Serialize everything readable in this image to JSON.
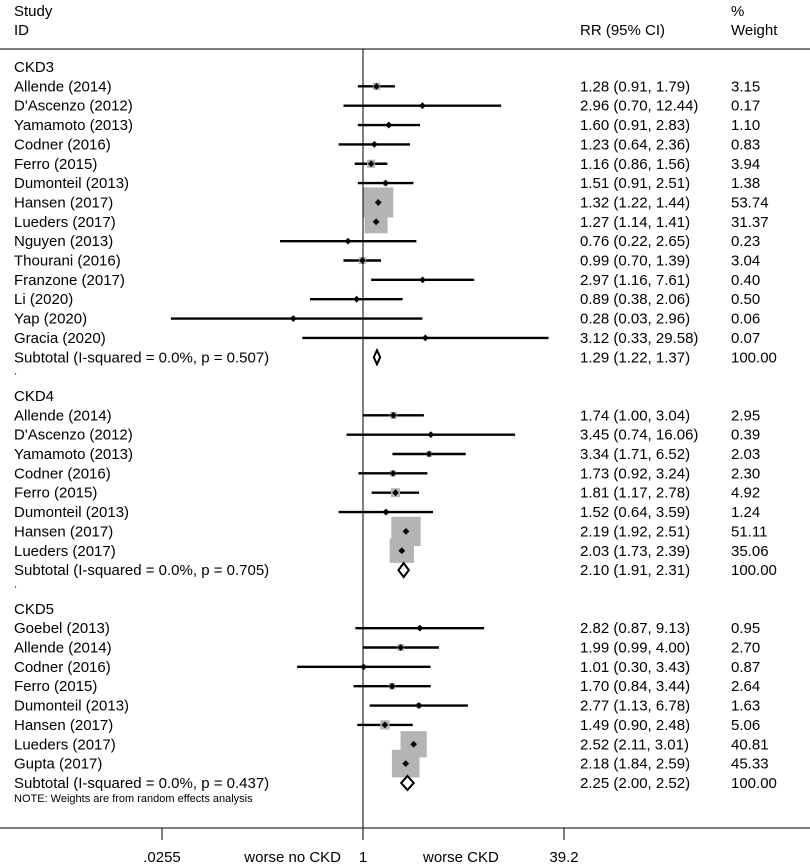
{
  "chart_data": {
    "type": "forest",
    "header": {
      "study_line1": "Study",
      "study_line2": "ID",
      "rr": "RR (95% CI)",
      "weight_line1": "%",
      "weight_line2": "Weight"
    },
    "x_axis": {
      "scale": "log",
      "min": 0.0255,
      "max": 39.2,
      "null_value": 1,
      "tick_labels": [
        ".0255",
        "1",
        "39.2"
      ],
      "left_label": "worse no CKD",
      "right_label": "worse CKD"
    },
    "note": "NOTE: Weights are from random effects analysis",
    "groups": [
      {
        "name": "CKD3",
        "studies": [
          {
            "study": "Allende (2014)",
            "rr": 1.28,
            "lo": 0.91,
            "hi": 1.79,
            "ci_text": "1.28 (0.91, 1.79)",
            "weight": "3.15"
          },
          {
            "study": "D'Ascenzo (2012)",
            "rr": 2.96,
            "lo": 0.7,
            "hi": 12.44,
            "ci_text": "2.96 (0.70, 12.44)",
            "weight": "0.17"
          },
          {
            "study": "Yamamoto (2013)",
            "rr": 1.6,
            "lo": 0.91,
            "hi": 2.83,
            "ci_text": "1.60 (0.91, 2.83)",
            "weight": "1.10"
          },
          {
            "study": "Codner (2016)",
            "rr": 1.23,
            "lo": 0.64,
            "hi": 2.36,
            "ci_text": "1.23 (0.64, 2.36)",
            "weight": "0.83"
          },
          {
            "study": "Ferro (2015)",
            "rr": 1.16,
            "lo": 0.86,
            "hi": 1.56,
            "ci_text": "1.16 (0.86, 1.56)",
            "weight": "3.94"
          },
          {
            "study": "Dumonteil (2013)",
            "rr": 1.51,
            "lo": 0.91,
            "hi": 2.51,
            "ci_text": "1.51 (0.91, 2.51)",
            "weight": "1.38"
          },
          {
            "study": "Hansen (2017)",
            "rr": 1.32,
            "lo": 1.22,
            "hi": 1.44,
            "ci_text": "1.32 (1.22, 1.44)",
            "weight": "53.74"
          },
          {
            "study": "Lueders (2017)",
            "rr": 1.27,
            "lo": 1.14,
            "hi": 1.41,
            "ci_text": "1.27 (1.14, 1.41)",
            "weight": "31.37"
          },
          {
            "study": "Nguyen (2013)",
            "rr": 0.76,
            "lo": 0.22,
            "hi": 2.65,
            "ci_text": "0.76 (0.22, 2.65)",
            "weight": "0.23"
          },
          {
            "study": "Thourani (2016)",
            "rr": 0.99,
            "lo": 0.7,
            "hi": 1.39,
            "ci_text": "0.99 (0.70, 1.39)",
            "weight": "3.04"
          },
          {
            "study": "Franzone (2017)",
            "rr": 2.97,
            "lo": 1.16,
            "hi": 7.61,
            "ci_text": "2.97 (1.16, 7.61)",
            "weight": "0.40"
          },
          {
            "study": "Li (2020)",
            "rr": 0.89,
            "lo": 0.38,
            "hi": 2.06,
            "ci_text": "0.89 (0.38, 2.06)",
            "weight": "0.50"
          },
          {
            "study": "Yap (2020)",
            "rr": 0.28,
            "lo": 0.03,
            "hi": 2.96,
            "ci_text": "0.28 (0.03, 2.96)",
            "weight": "0.06"
          },
          {
            "study": "Gracia (2020)",
            "rr": 3.12,
            "lo": 0.33,
            "hi": 29.58,
            "ci_text": "3.12 (0.33, 29.58)",
            "weight": "0.07"
          }
        ],
        "subtotal": {
          "label": "Subtotal  (I-squared = 0.0%, p = 0.507)",
          "rr": 1.29,
          "lo": 1.22,
          "hi": 1.37,
          "ci_text": "1.29 (1.22, 1.37)",
          "weight": "100.00"
        }
      },
      {
        "name": "CKD4",
        "studies": [
          {
            "study": "Allende (2014)",
            "rr": 1.74,
            "lo": 1.0,
            "hi": 3.04,
            "ci_text": "1.74 (1.00, 3.04)",
            "weight": "2.95"
          },
          {
            "study": "D'Ascenzo (2012)",
            "rr": 3.45,
            "lo": 0.74,
            "hi": 16.06,
            "ci_text": "3.45 (0.74, 16.06)",
            "weight": "0.39"
          },
          {
            "study": "Yamamoto (2013)",
            "rr": 3.34,
            "lo": 1.71,
            "hi": 6.52,
            "ci_text": "3.34 (1.71, 6.52)",
            "weight": "2.03"
          },
          {
            "study": "Codner (2016)",
            "rr": 1.73,
            "lo": 0.92,
            "hi": 3.24,
            "ci_text": "1.73 (0.92, 3.24)",
            "weight": "2.30"
          },
          {
            "study": "Ferro (2015)",
            "rr": 1.81,
            "lo": 1.17,
            "hi": 2.78,
            "ci_text": "1.81 (1.17, 2.78)",
            "weight": "4.92"
          },
          {
            "study": "Dumonteil (2013)",
            "rr": 1.52,
            "lo": 0.64,
            "hi": 3.59,
            "ci_text": "1.52 (0.64, 3.59)",
            "weight": "1.24"
          },
          {
            "study": "Hansen (2017)",
            "rr": 2.19,
            "lo": 1.92,
            "hi": 2.51,
            "ci_text": "2.19 (1.92, 2.51)",
            "weight": "51.11"
          },
          {
            "study": "Lueders (2017)",
            "rr": 2.03,
            "lo": 1.73,
            "hi": 2.39,
            "ci_text": "2.03 (1.73, 2.39)",
            "weight": "35.06"
          }
        ],
        "subtotal": {
          "label": "Subtotal  (I-squared = 0.0%, p = 0.705)",
          "rr": 2.1,
          "lo": 1.91,
          "hi": 2.31,
          "ci_text": "2.10 (1.91, 2.31)",
          "weight": "100.00"
        }
      },
      {
        "name": "CKD5",
        "studies": [
          {
            "study": "Goebel (2013)",
            "rr": 2.82,
            "lo": 0.87,
            "hi": 9.13,
            "ci_text": "2.82 (0.87, 9.13)",
            "weight": "0.95"
          },
          {
            "study": "Allende (2014)",
            "rr": 1.99,
            "lo": 0.99,
            "hi": 4.0,
            "ci_text": "1.99 (0.99, 4.00)",
            "weight": "2.70"
          },
          {
            "study": "Codner (2016)",
            "rr": 1.01,
            "lo": 0.3,
            "hi": 3.43,
            "ci_text": "1.01 (0.30, 3.43)",
            "weight": "0.87"
          },
          {
            "study": "Ferro (2015)",
            "rr": 1.7,
            "lo": 0.84,
            "hi": 3.44,
            "ci_text": "1.70 (0.84, 3.44)",
            "weight": "2.64"
          },
          {
            "study": "Dumonteil (2013)",
            "rr": 2.77,
            "lo": 1.13,
            "hi": 6.78,
            "ci_text": "2.77 (1.13, 6.78)",
            "weight": "1.63"
          },
          {
            "study": "Hansen (2017)",
            "rr": 1.49,
            "lo": 0.9,
            "hi": 2.48,
            "ci_text": "1.49 (0.90, 2.48)",
            "weight": "5.06"
          },
          {
            "study": "Lueders (2017)",
            "rr": 2.52,
            "lo": 2.11,
            "hi": 3.01,
            "ci_text": "2.52 (2.11, 3.01)",
            "weight": "40.81"
          },
          {
            "study": "Gupta (2017)",
            "rr": 2.18,
            "lo": 1.84,
            "hi": 2.59,
            "ci_text": "2.18 (1.84, 2.59)",
            "weight": "45.33"
          }
        ],
        "subtotal": {
          "label": "Subtotal  (I-squared = 0.0%, p = 0.437)",
          "rr": 2.25,
          "lo": 2.0,
          "hi": 2.52,
          "ci_text": "2.25 (2.00, 2.52)",
          "weight": "100.00"
        }
      }
    ]
  }
}
